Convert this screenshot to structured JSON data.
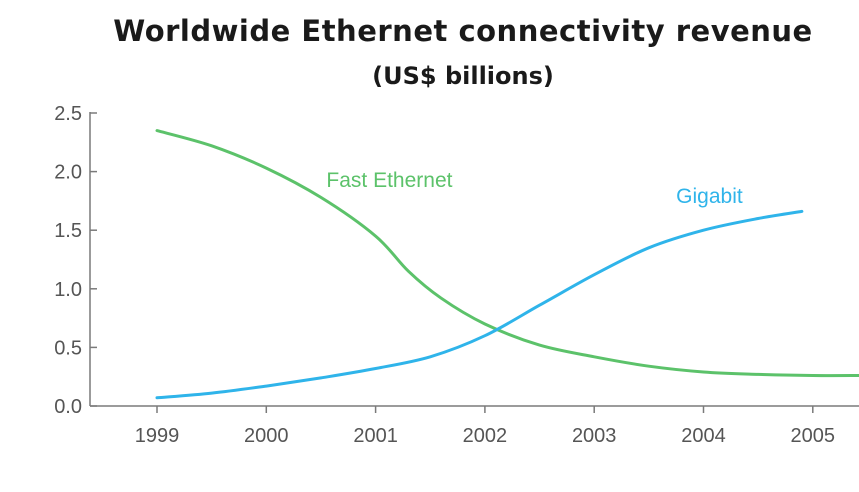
{
  "chart_data": {
    "type": "line",
    "title": "Worldwide Ethernet connectivity revenue",
    "subtitle": "(US$ billions)",
    "xlabel": "",
    "ylabel": "",
    "x": [
      "1999",
      "2000",
      "2001",
      "2002",
      "2003",
      "2004",
      "2005"
    ],
    "xlim": [
      1999,
      2005.5
    ],
    "ylim": [
      0,
      2.5
    ],
    "y_ticks": [
      "0.0",
      "0.5",
      "1.0",
      "1.5",
      "2.0",
      "2.5"
    ],
    "grid": false,
    "series": [
      {
        "name": "Fast Ethernet",
        "color": "#5cc26a",
        "points": [
          [
            1999,
            2.35
          ],
          [
            1999.5,
            2.22
          ],
          [
            2000,
            2.03
          ],
          [
            2000.5,
            1.78
          ],
          [
            2001,
            1.45
          ],
          [
            2001.3,
            1.15
          ],
          [
            2001.6,
            0.92
          ],
          [
            2002,
            0.7
          ],
          [
            2002.5,
            0.52
          ],
          [
            2003,
            0.42
          ],
          [
            2003.5,
            0.34
          ],
          [
            2004,
            0.29
          ],
          [
            2004.5,
            0.27
          ],
          [
            2005,
            0.26
          ],
          [
            2005.5,
            0.26
          ]
        ]
      },
      {
        "name": "Gigabit",
        "color": "#2fb4ea",
        "points": [
          [
            1999,
            0.07
          ],
          [
            1999.5,
            0.11
          ],
          [
            2000,
            0.17
          ],
          [
            2000.5,
            0.24
          ],
          [
            2001,
            0.32
          ],
          [
            2001.5,
            0.42
          ],
          [
            2002,
            0.6
          ],
          [
            2002.5,
            0.86
          ],
          [
            2003,
            1.12
          ],
          [
            2003.5,
            1.35
          ],
          [
            2004,
            1.5
          ],
          [
            2004.5,
            1.6
          ],
          [
            2004.9,
            1.66
          ]
        ]
      }
    ]
  }
}
